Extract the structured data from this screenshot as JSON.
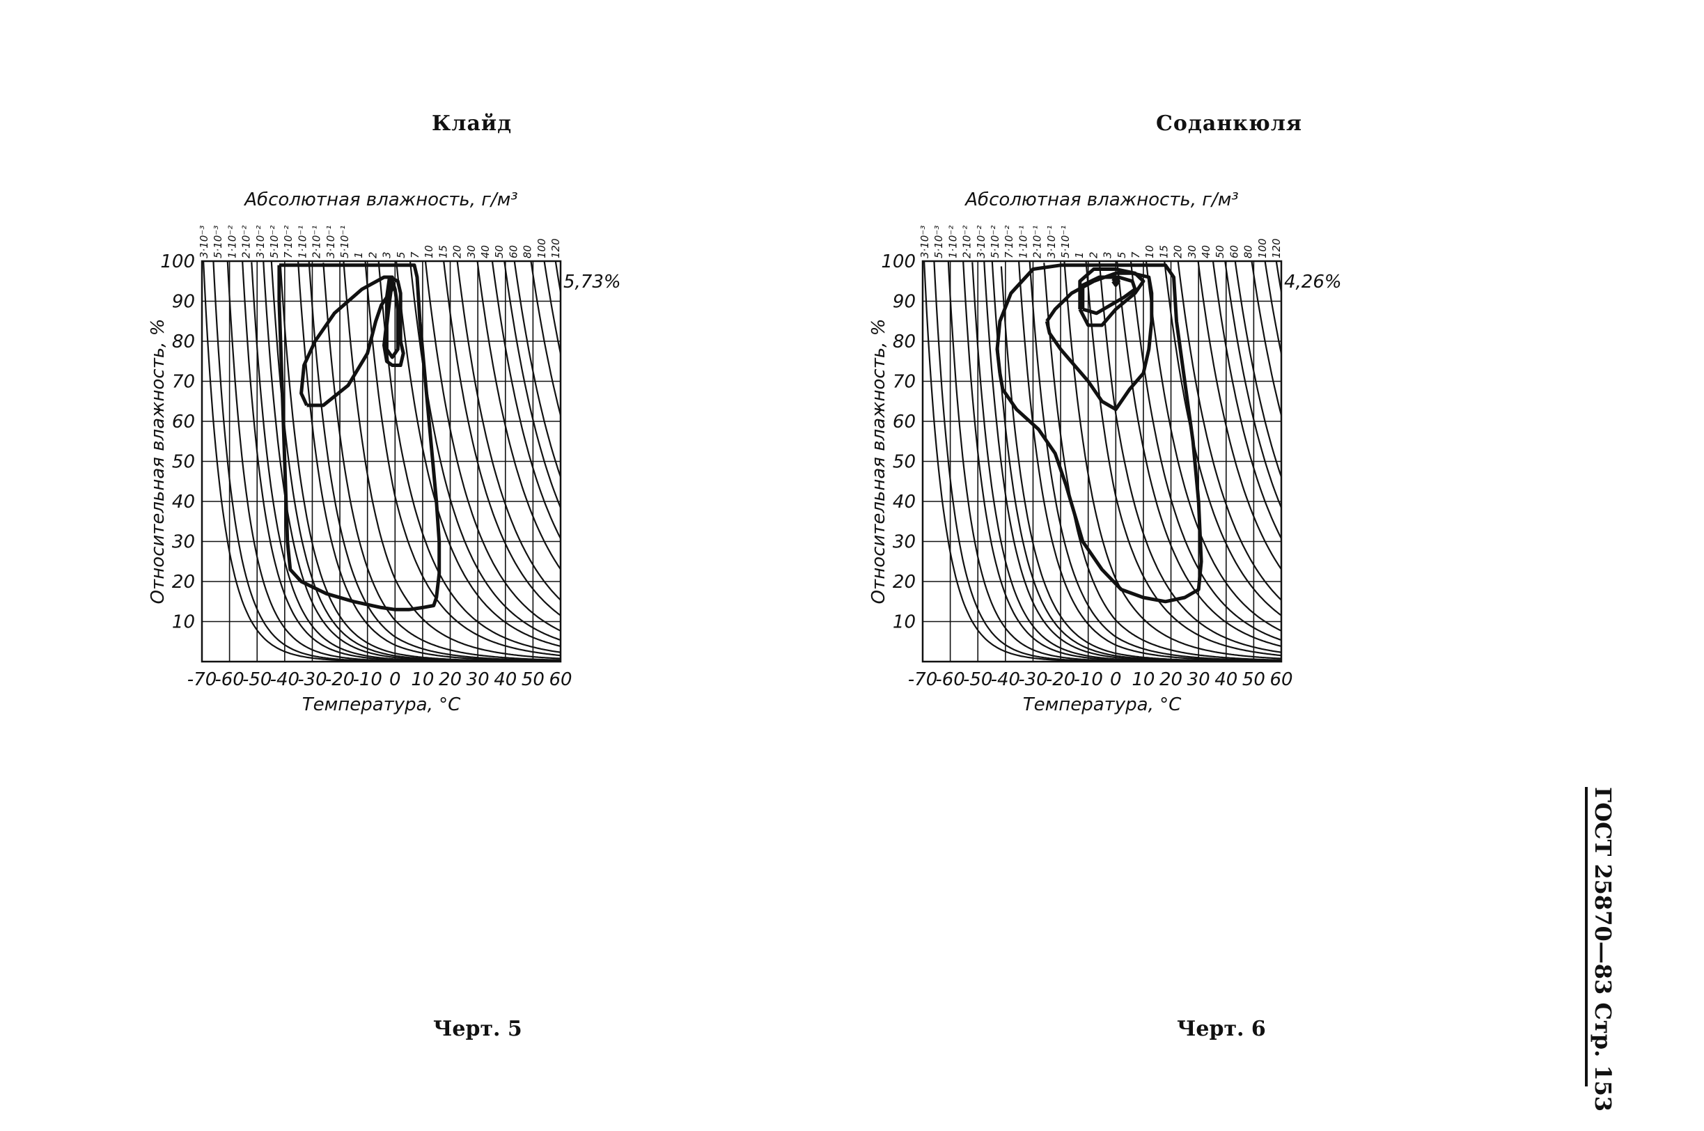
{
  "document": {
    "side_label": "ГОСТ 25870—83 Стр. 153"
  },
  "chart_data": [
    {
      "type": "line",
      "title": "Клайд",
      "caption": "Черт. 5",
      "xlabel": "Температура, °С",
      "ylabel": "Относительная влажность, %",
      "top_axis_label": "Абсолютная влажность, г/м³",
      "xlim": [
        -70,
        60
      ],
      "ylim": [
        0,
        100
      ],
      "x_ticks": [
        "-70",
        "-60",
        "-50",
        "-40",
        "-30",
        "-20",
        "-10",
        "0",
        "10",
        "20",
        "30",
        "40",
        "50",
        "60"
      ],
      "y_ticks": [
        "10",
        "20",
        "30",
        "40",
        "50",
        "60",
        "70",
        "80",
        "90",
        "100"
      ],
      "humidity_labels": [
        "3·10⁻³",
        "5·10⁻³",
        "1·10⁻²",
        "2·10⁻²",
        "3·10⁻²",
        "5·10⁻²",
        "7·10⁻²",
        "1·10⁻¹",
        "2·10⁻¹",
        "3·10⁻¹",
        "5·10⁻¹",
        "1",
        "2",
        "3",
        "5",
        "7",
        "10",
        "15",
        "20",
        "30",
        "40",
        "50",
        "60",
        "80",
        "100",
        "120"
      ],
      "annotation": "5,73%",
      "grid": true,
      "series": [
        {
          "values": [
            [
              -42,
              99
            ],
            [
              -42,
              90
            ],
            [
              -41,
              70
            ],
            [
              -40,
              50
            ],
            [
              -39,
              30
            ],
            [
              -38,
              23
            ],
            [
              -34,
              20
            ],
            [
              -25,
              17
            ],
            [
              -15,
              15
            ],
            [
              -5,
              13.5
            ],
            [
              0,
              13
            ],
            [
              5,
              13
            ],
            [
              10,
              13.5
            ],
            [
              14,
              14
            ],
            [
              15,
              16
            ],
            [
              16,
              22
            ],
            [
              16,
              30
            ],
            [
              15,
              40
            ],
            [
              13,
              55
            ],
            [
              11,
              70
            ],
            [
              9,
              85
            ],
            [
              8,
              96
            ],
            [
              7,
              99
            ],
            [
              0,
              99
            ],
            [
              -20,
              99
            ],
            [
              -40,
              99
            ],
            [
              -42,
              99
            ]
          ]
        },
        {
          "values": [
            [
              -32,
              64
            ],
            [
              -34,
              67
            ],
            [
              -33,
              74
            ],
            [
              -29,
              80
            ],
            [
              -22,
              87
            ],
            [
              -12,
              93
            ],
            [
              -4,
              96
            ],
            [
              -1,
              96
            ],
            [
              -1,
              93
            ],
            [
              -5,
              89
            ],
            [
              -7,
              85
            ],
            [
              -10,
              77
            ],
            [
              -17,
              69
            ],
            [
              -26,
              64
            ],
            [
              -32,
              64
            ]
          ]
        },
        {
          "values": [
            [
              -2,
              96
            ],
            [
              1,
              95
            ],
            [
              2,
              92
            ],
            [
              2,
              86
            ],
            [
              2,
              80
            ],
            [
              3,
              77
            ],
            [
              2,
              74
            ],
            [
              -1,
              74
            ],
            [
              -3,
              75
            ],
            [
              -4,
              79
            ],
            [
              -3,
              85
            ],
            [
              -3,
              91
            ],
            [
              -2,
              96
            ]
          ]
        },
        {
          "values": [
            [
              -1,
              95
            ],
            [
              0,
              93
            ],
            [
              1,
              88
            ],
            [
              1,
              82
            ],
            [
              1,
              78
            ],
            [
              -1,
              76
            ],
            [
              -3,
              78
            ],
            [
              -3,
              84
            ],
            [
              -2,
              90
            ],
            [
              -1,
              95
            ]
          ]
        }
      ]
    },
    {
      "type": "line",
      "title": "Соданкюля",
      "caption": "Черт. 6",
      "xlabel": "Температура, °С",
      "ylabel": "Относительная влажность, %",
      "top_axis_label": "Абсолютная влажность, г/м³",
      "xlim": [
        -70,
        60
      ],
      "ylim": [
        0,
        100
      ],
      "x_ticks": [
        "-70",
        "-60",
        "-50",
        "-40",
        "-30",
        "-20",
        "-10",
        "0",
        "10",
        "20",
        "30",
        "40",
        "50",
        "60"
      ],
      "y_ticks": [
        "10",
        "20",
        "30",
        "40",
        "50",
        "60",
        "70",
        "80",
        "90",
        "100"
      ],
      "humidity_labels": [
        "3·10⁻³",
        "5·10⁻³",
        "1·10⁻²",
        "2·10⁻²",
        "3·10⁻²",
        "5·10⁻²",
        "7·10⁻²",
        "1·10⁻¹",
        "2·10⁻¹",
        "3·10⁻¹",
        "5·10⁻¹",
        "1",
        "2",
        "3",
        "5",
        "7",
        "10",
        "15",
        "20",
        "30",
        "40",
        "50",
        "60",
        "80",
        "100",
        "120"
      ],
      "annotation": "4,26%",
      "grid": true,
      "series": [
        {
          "values": [
            [
              -42,
              72
            ],
            [
              -43,
              78
            ],
            [
              -42,
              85
            ],
            [
              -38,
              92
            ],
            [
              -30,
              98
            ],
            [
              -20,
              99
            ],
            [
              0,
              99
            ],
            [
              18,
              99
            ],
            [
              21,
              96
            ],
            [
              22,
              85
            ],
            [
              25,
              70
            ],
            [
              28,
              55
            ],
            [
              30,
              40
            ],
            [
              31,
              25
            ],
            [
              30,
              18
            ],
            [
              25,
              16
            ],
            [
              18,
              15
            ],
            [
              10,
              16
            ],
            [
              2,
              18
            ],
            [
              -5,
              23
            ],
            [
              -12,
              30
            ],
            [
              -15,
              37
            ],
            [
              -18,
              44
            ],
            [
              -22,
              52
            ],
            [
              -28,
              58
            ],
            [
              -36,
              63
            ],
            [
              -41,
              68
            ],
            [
              -42,
              72
            ]
          ]
        },
        {
          "values": [
            [
              -25,
              85
            ],
            [
              -22,
              88
            ],
            [
              -16,
              92
            ],
            [
              -8,
              95
            ],
            [
              0,
              97
            ],
            [
              6,
              97
            ],
            [
              12,
              96
            ],
            [
              13,
              92
            ],
            [
              13,
              85
            ],
            [
              12,
              78
            ],
            [
              10,
              72
            ],
            [
              5,
              68
            ],
            [
              0,
              63
            ],
            [
              -5,
              65
            ],
            [
              -10,
              70
            ],
            [
              -20,
              78
            ],
            [
              -24,
              82
            ],
            [
              -25,
              85
            ]
          ]
        },
        {
          "values": [
            [
              -13,
              88
            ],
            [
              -13,
              95
            ],
            [
              -8,
              98
            ],
            [
              0,
              98
            ],
            [
              7,
              97
            ],
            [
              10,
              95
            ],
            [
              7,
              92
            ],
            [
              0,
              88
            ],
            [
              -5,
              84
            ],
            [
              -10,
              84
            ],
            [
              -13,
              88
            ]
          ]
        },
        {
          "values": [
            [
              -12,
              88
            ],
            [
              -12,
              94
            ],
            [
              -6,
              96
            ],
            [
              1,
              96
            ],
            [
              6,
              95
            ],
            [
              7,
              93
            ],
            [
              3,
              91
            ],
            [
              -2,
              89
            ],
            [
              -7,
              87
            ],
            [
              -12,
              88
            ]
          ]
        },
        {
          "values": [
            [
              -1,
              95
            ],
            [
              0,
              96
            ],
            [
              1,
              95
            ],
            [
              0,
              94
            ],
            [
              -1,
              95
            ]
          ]
        }
      ]
    }
  ]
}
